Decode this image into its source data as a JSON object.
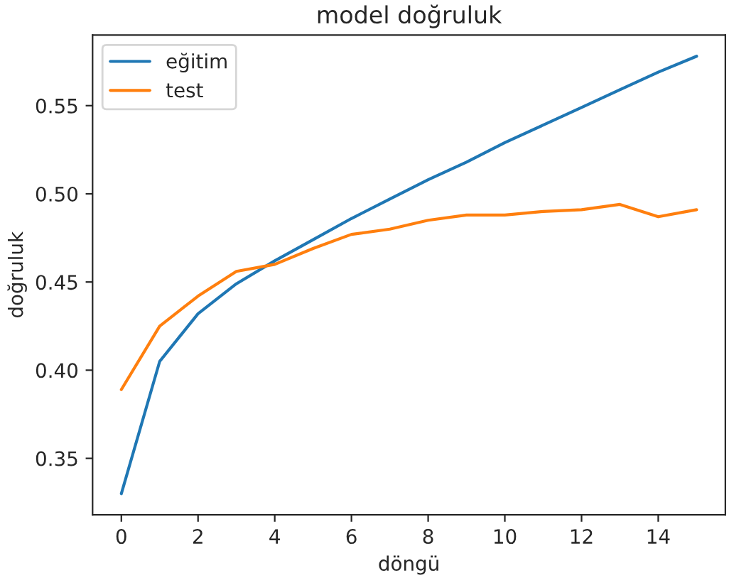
{
  "chart_data": {
    "type": "line",
    "title": "model doğruluk",
    "xlabel": "döngü",
    "ylabel": "doğruluk",
    "x": [
      0,
      1,
      2,
      3,
      4,
      5,
      6,
      7,
      8,
      9,
      10,
      11,
      12,
      13,
      14,
      15
    ],
    "series": [
      {
        "name": "eğitim",
        "color": "#1f77b4",
        "values": [
          0.33,
          0.405,
          0.432,
          0.449,
          0.462,
          0.474,
          0.486,
          0.497,
          0.508,
          0.518,
          0.529,
          0.539,
          0.549,
          0.559,
          0.569,
          0.578
        ]
      },
      {
        "name": "test",
        "color": "#ff7f0e",
        "values": [
          0.389,
          0.425,
          0.442,
          0.456,
          0.46,
          0.469,
          0.477,
          0.48,
          0.485,
          0.488,
          0.488,
          0.49,
          0.491,
          0.494,
          0.487,
          0.491
        ]
      }
    ],
    "xlim": [
      -0.75,
      15.75
    ],
    "ylim": [
      0.318,
      0.59
    ],
    "xticks": [
      0,
      2,
      4,
      6,
      8,
      10,
      12,
      14
    ],
    "yticks": [
      0.35,
      {
        "value": 0.4,
        "label": "0.40"
      },
      0.45,
      {
        "value": 0.5,
        "label": "0.50"
      },
      0.55
    ],
    "legend": "top left",
    "grid": false
  }
}
